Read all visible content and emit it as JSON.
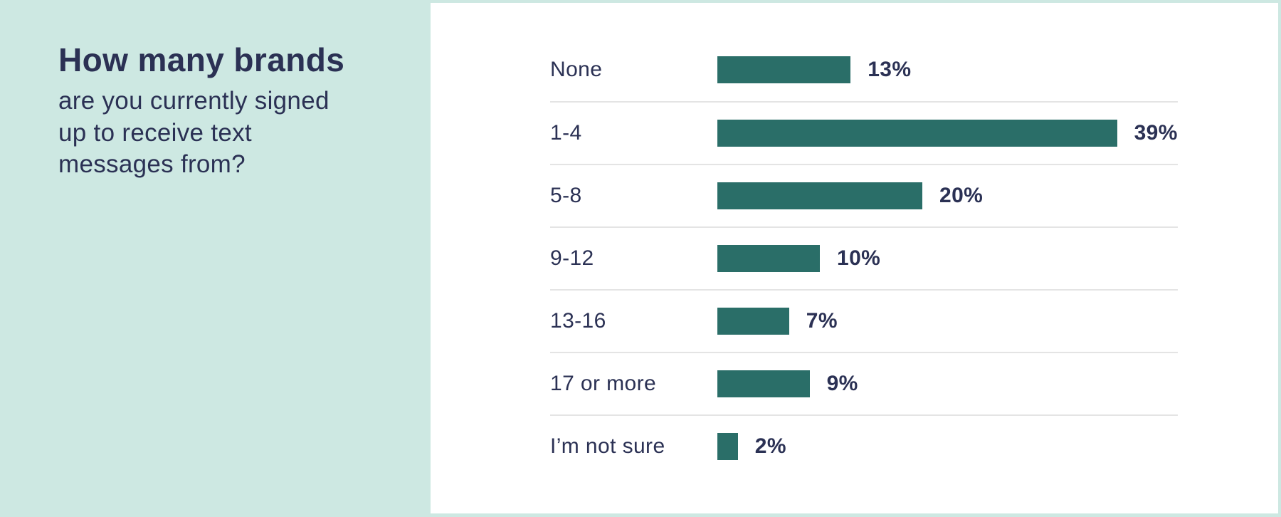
{
  "panel": {
    "title": "How many brands",
    "subtitle": "are you currently signed\nup to receive text\nmessages from?"
  },
  "chart_data": {
    "type": "bar",
    "orientation": "horizontal",
    "title": "How many brands are you currently signed up to receive text messages from?",
    "categories": [
      "None",
      "1-4",
      "5-8",
      "9-12",
      "13-16",
      "17 or more",
      "I’m not sure"
    ],
    "values": [
      13,
      39,
      20,
      10,
      7,
      9,
      2
    ],
    "value_labels": [
      "13%",
      "39%",
      "20%",
      "10%",
      "7%",
      "9%",
      "2%"
    ],
    "value_suffix": "%",
    "xlim": [
      0,
      39
    ],
    "legend": "none",
    "grid": "row-dividers-only"
  },
  "colors": {
    "background_mint": "#cde8e2",
    "card_white": "#ffffff",
    "bar_teal": "#2a6e68",
    "text_navy": "#2b3154",
    "divider_gray": "#e4e4e4"
  }
}
